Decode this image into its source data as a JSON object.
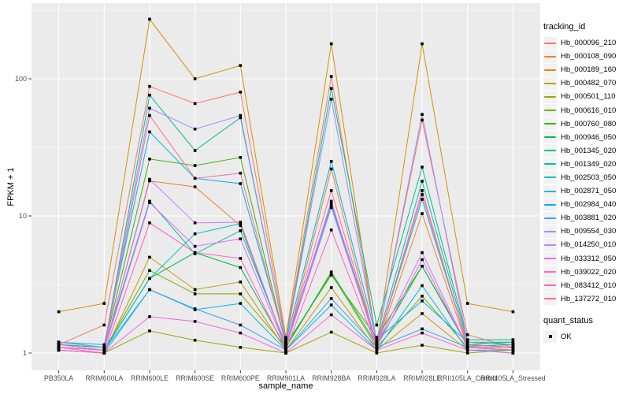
{
  "figure": {
    "background": "#FFFFFF",
    "panel_background": "#EBEBEB",
    "grid_color": "#FFFFFF",
    "axis_text_color": "#4D4D4D",
    "tick_mark_color": "#333333",
    "point_color": "#000000"
  },
  "chart_data": {
    "type": "line",
    "title": "",
    "xlabel": "sample_name",
    "ylabel": "FPKM + 1",
    "y_scale": "log10",
    "ylim": [
      0.75,
      350
    ],
    "grid": true,
    "legend_position": "right",
    "y_ticks": [
      {
        "label": "1",
        "value": 1
      },
      {
        "label": "10",
        "value": 10
      },
      {
        "label": "100",
        "value": 100
      }
    ],
    "y_minor": [
      3.162,
      31.62,
      316.2
    ],
    "categories": [
      "PB350LA",
      "RRIM600LA",
      "RRIM600LE",
      "RRIM600SE",
      "RRIM600PE",
      "RRIM901LA",
      "RRIM928BA",
      "RRIM928LA",
      "RRIM928LE",
      "RRII105LA_Control",
      "RRII105LA_Stressed"
    ],
    "series": [
      {
        "name": "Hb_000096_210",
        "color": "#F8766D",
        "values": [
          1.15,
          1.6,
          88,
          66,
          80,
          1.25,
          104,
          1.2,
          50,
          1.36,
          1.1
        ]
      },
      {
        "name": "Hb_000108_090",
        "color": "#EA8331",
        "values": [
          1.1,
          1.05,
          18.0,
          16.3,
          8.5,
          1.1,
          22.0,
          1.1,
          10.4,
          1.1,
          1.05
        ]
      },
      {
        "name": "Hb_000189_160",
        "color": "#D89000",
        "values": [
          2.0,
          2.3,
          272,
          100,
          125,
          1.3,
          180,
          1.15,
          180,
          2.3,
          2.0
        ]
      },
      {
        "name": "Hb_000482_070",
        "color": "#C09B00",
        "values": [
          1.05,
          1.0,
          5.0,
          2.9,
          3.3,
          1.05,
          3.0,
          1.05,
          1.94,
          1.05,
          1.0
        ]
      },
      {
        "name": "Hb_000501_110",
        "color": "#A3A500",
        "values": [
          1.05,
          1.0,
          1.45,
          1.24,
          1.1,
          1.0,
          1.42,
          1.0,
          1.14,
          1.0,
          1.05
        ]
      },
      {
        "name": "Hb_000616_010",
        "color": "#7CAE00",
        "values": [
          1.1,
          1.05,
          4.0,
          2.7,
          2.7,
          1.1,
          3.8,
          1.1,
          2.6,
          1.1,
          1.1
        ]
      },
      {
        "name": "Hb_000760_080",
        "color": "#39B600",
        "values": [
          1.15,
          1.1,
          26.0,
          23.3,
          26.7,
          1.15,
          3.7,
          1.3,
          4.3,
          1.15,
          1.2
        ]
      },
      {
        "name": "Hb_000946_050",
        "color": "#00BB4E",
        "values": [
          1.1,
          1.05,
          3.5,
          5.4,
          4.2,
          1.1,
          3.9,
          1.15,
          4.3,
          1.12,
          1.15
        ]
      },
      {
        "name": "Hb_001345_020",
        "color": "#00C087",
        "values": [
          1.2,
          1.1,
          76,
          30,
          52,
          1.2,
          85,
          1.6,
          22.7,
          1.25,
          1.25
        ]
      },
      {
        "name": "Hb_001349_020",
        "color": "#00C1AB",
        "values": [
          1.15,
          1.1,
          12.8,
          5.3,
          7.8,
          1.15,
          12.5,
          1.2,
          17.9,
          1.2,
          1.2
        ]
      },
      {
        "name": "Hb_002503_050",
        "color": "#00BFC4",
        "values": [
          1.1,
          1.05,
          3.5,
          7.4,
          8.8,
          1.1,
          12.0,
          1.15,
          13.2,
          1.15,
          1.1
        ]
      },
      {
        "name": "Hb_002871_050",
        "color": "#00BAE0",
        "values": [
          1.05,
          1.0,
          2.9,
          2.07,
          2.3,
          1.05,
          2.24,
          1.05,
          3.1,
          1.05,
          1.05
        ]
      },
      {
        "name": "Hb_002984_040",
        "color": "#00B0F6",
        "values": [
          1.2,
          1.15,
          41,
          18.8,
          17.2,
          1.2,
          25,
          1.25,
          2.4,
          1.2,
          1.15
        ]
      },
      {
        "name": "Hb_003881_020",
        "color": "#35A2FF",
        "values": [
          1.1,
          1.05,
          2.9,
          2.1,
          1.6,
          1.05,
          2.5,
          1.1,
          1.5,
          1.1,
          1.05
        ]
      },
      {
        "name": "Hb_009554_030",
        "color": "#9590FF",
        "values": [
          1.2,
          1.1,
          61,
          43,
          54,
          1.2,
          71,
          1.2,
          55,
          1.2,
          1.15
        ]
      },
      {
        "name": "Hb_014250_010",
        "color": "#C77CFF",
        "values": [
          1.1,
          1.05,
          18.5,
          8.9,
          9.0,
          1.1,
          11.5,
          1.15,
          5.4,
          1.1,
          1.1
        ]
      },
      {
        "name": "Hb_033312_050",
        "color": "#E76BF3",
        "values": [
          1.1,
          1.05,
          12.5,
          6.0,
          6.8,
          1.1,
          12.8,
          1.1,
          4.8,
          1.1,
          1.05
        ]
      },
      {
        "name": "Hb_039022_020",
        "color": "#FA62DB",
        "values": [
          1.05,
          1.0,
          1.84,
          1.7,
          1.4,
          1.0,
          1.9,
          1.05,
          1.4,
          1.05,
          1.0
        ]
      },
      {
        "name": "Hb_083412_010",
        "color": "#FF62BC",
        "values": [
          1.1,
          1.0,
          8.9,
          5.4,
          4.9,
          1.05,
          7.9,
          1.1,
          15.3,
          1.1,
          1.05
        ]
      },
      {
        "name": "Hb_137272_010",
        "color": "#FF6A98",
        "values": [
          1.15,
          1.05,
          54,
          18.8,
          20.5,
          1.15,
          15.3,
          1.15,
          14.3,
          1.15,
          1.1
        ]
      }
    ],
    "legend": {
      "color_title": "tracking_id",
      "shape_title": "quant_status",
      "shape_label": "OK"
    }
  }
}
